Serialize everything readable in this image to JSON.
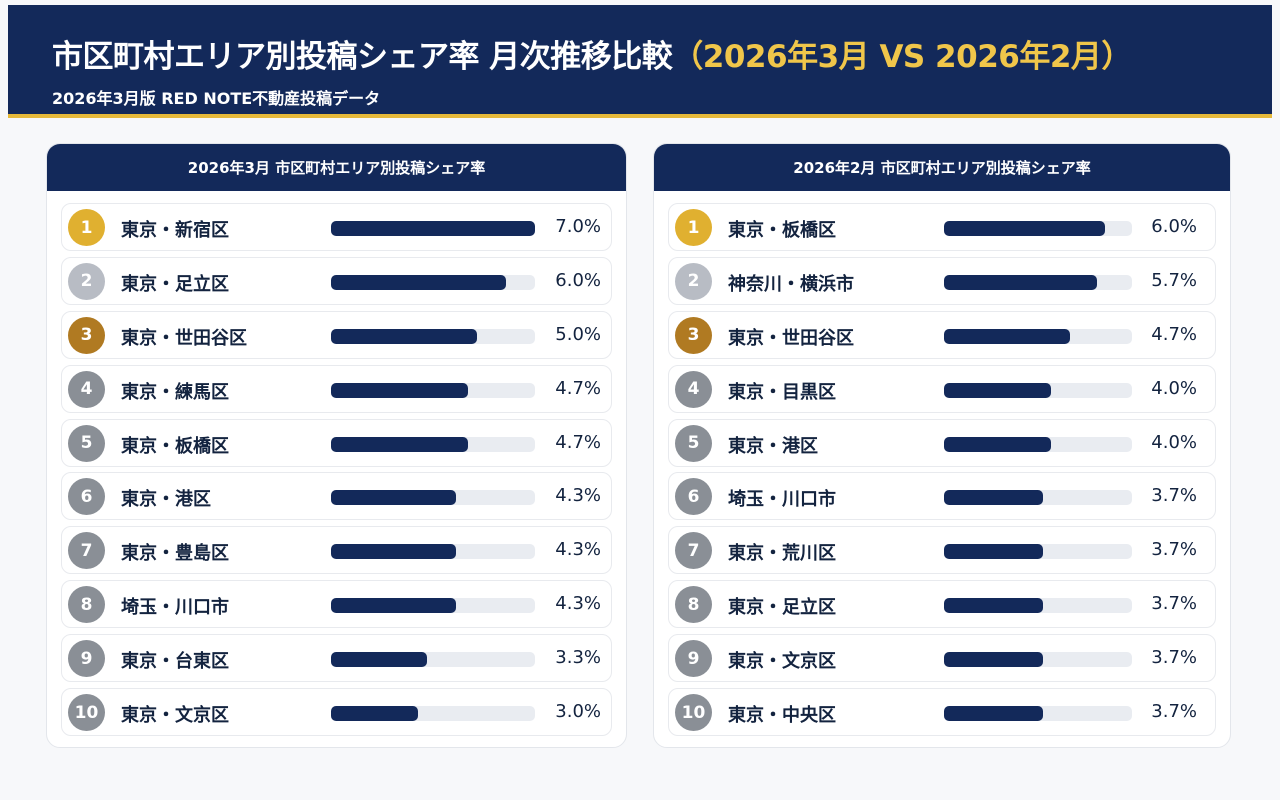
{
  "header": {
    "title": "市区町村エリア別投稿シェア率 月次推移比較",
    "title_highlight": "（2026年3月 VS 2026年2月）",
    "subtitle": "2026年3月版 RED NOTE不動産投稿データ"
  },
  "colors": {
    "navy": "#13295a",
    "gold": "#e0b030",
    "silver": "#b8bcc4",
    "bronze": "#b07a22",
    "gray": "#8a8f96"
  },
  "chart_data": [
    {
      "type": "bar",
      "title": "2026年3月 市区町村エリア別投稿シェア率",
      "unit": "%",
      "xlim": [
        0,
        7
      ],
      "categories": [
        "東京・新宿区",
        "東京・足立区",
        "東京・世田谷区",
        "東京・練馬区",
        "東京・板橋区",
        "東京・港区",
        "東京・豊島区",
        "埼玉・川口市",
        "東京・台東区",
        "東京・文京区"
      ],
      "values": [
        7.0,
        6.0,
        5.0,
        4.7,
        4.7,
        4.3,
        4.3,
        4.3,
        3.3,
        3.0
      ],
      "labels": [
        "7.0%",
        "6.0%",
        "5.0%",
        "4.7%",
        "4.7%",
        "4.3%",
        "4.3%",
        "4.3%",
        "3.3%",
        "3.0%"
      ],
      "ranks": [
        "1",
        "2",
        "3",
        "4",
        "5",
        "6",
        "7",
        "8",
        "9",
        "10"
      ]
    },
    {
      "type": "bar",
      "title": "2026年2月 市区町村エリア別投稿シェア率",
      "unit": "%",
      "xlim": [
        0,
        7
      ],
      "categories": [
        "東京・板橋区",
        "神奈川・横浜市",
        "東京・世田谷区",
        "東京・目黒区",
        "東京・港区",
        "埼玉・川口市",
        "東京・荒川区",
        "東京・足立区",
        "東京・文京区",
        "東京・中央区"
      ],
      "values": [
        6.0,
        5.7,
        4.7,
        4.0,
        4.0,
        3.7,
        3.7,
        3.7,
        3.7,
        3.7
      ],
      "labels": [
        "6.0%",
        "5.7%",
        "4.7%",
        "4.0%",
        "4.0%",
        "3.7%",
        "3.7%",
        "3.7%",
        "3.7%",
        "3.7%"
      ],
      "ranks": [
        "1",
        "2",
        "3",
        "4",
        "5",
        "6",
        "7",
        "8",
        "9",
        "10"
      ]
    }
  ]
}
